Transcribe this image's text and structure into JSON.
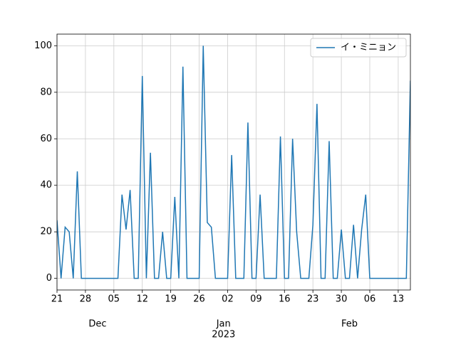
{
  "chart_data": {
    "type": "line",
    "x": [
      0,
      1,
      2,
      3,
      4,
      5,
      6,
      7,
      8,
      9,
      10,
      11,
      12,
      13,
      14,
      15,
      16,
      17,
      18,
      19,
      20,
      21,
      22,
      23,
      24,
      25,
      26,
      27,
      28,
      29,
      30,
      31,
      32,
      33,
      34,
      35,
      36,
      37,
      38,
      39,
      40,
      41,
      42,
      43,
      44,
      45,
      46,
      47,
      48,
      49,
      50,
      51,
      52,
      53,
      54,
      55,
      56,
      57,
      58,
      59,
      60,
      61,
      62,
      63,
      64,
      65,
      66,
      67,
      68,
      69,
      70,
      71,
      72,
      73,
      74,
      75,
      76,
      77,
      78,
      79,
      80,
      81,
      82,
      83,
      84,
      85,
      86,
      87
    ],
    "series": [
      {
        "name": "イ・ミニョン",
        "color": "#1f77b4",
        "values": [
          25,
          0,
          22,
          20,
          0,
          46,
          0,
          0,
          0,
          0,
          0,
          0,
          0,
          0,
          0,
          0,
          36,
          21,
          38,
          0,
          0,
          87,
          0,
          54,
          0,
          0,
          20,
          0,
          0,
          35,
          0,
          91,
          0,
          0,
          0,
          0,
          100,
          24,
          22,
          0,
          0,
          0,
          0,
          53,
          0,
          0,
          0,
          67,
          0,
          0,
          36,
          0,
          0,
          0,
          0,
          61,
          0,
          0,
          60,
          20,
          0,
          0,
          0,
          23,
          75,
          0,
          0,
          59,
          0,
          0,
          21,
          0,
          0,
          23,
          0,
          21,
          36,
          0,
          0,
          0,
          0,
          0,
          0,
          0,
          0,
          0,
          0,
          85
        ]
      }
    ],
    "xlim": [
      0,
      87
    ],
    "xticks": [
      {
        "value": 0,
        "label": "21"
      },
      {
        "value": 7,
        "label": "28"
      },
      {
        "value": 14,
        "label": "05"
      },
      {
        "value": 21,
        "label": "12"
      },
      {
        "value": 28,
        "label": "19"
      },
      {
        "value": 35,
        "label": "26"
      },
      {
        "value": 42,
        "label": "02"
      },
      {
        "value": 49,
        "label": "09"
      },
      {
        "value": 56,
        "label": "16"
      },
      {
        "value": 63,
        "label": "23"
      },
      {
        "value": 70,
        "label": "30"
      },
      {
        "value": 77,
        "label": "06"
      },
      {
        "value": 84,
        "label": "13"
      }
    ],
    "month_labels": [
      {
        "value": 10,
        "label": "Dec"
      },
      {
        "value": 41,
        "label": "Jan"
      },
      {
        "value": 72,
        "label": "Feb"
      }
    ],
    "year_label": {
      "value": 41,
      "label": "2023"
    },
    "ylim": [
      -5,
      105
    ],
    "yticks": [
      0,
      20,
      40,
      60,
      80,
      100
    ],
    "grid": true,
    "legend": "upper right"
  }
}
